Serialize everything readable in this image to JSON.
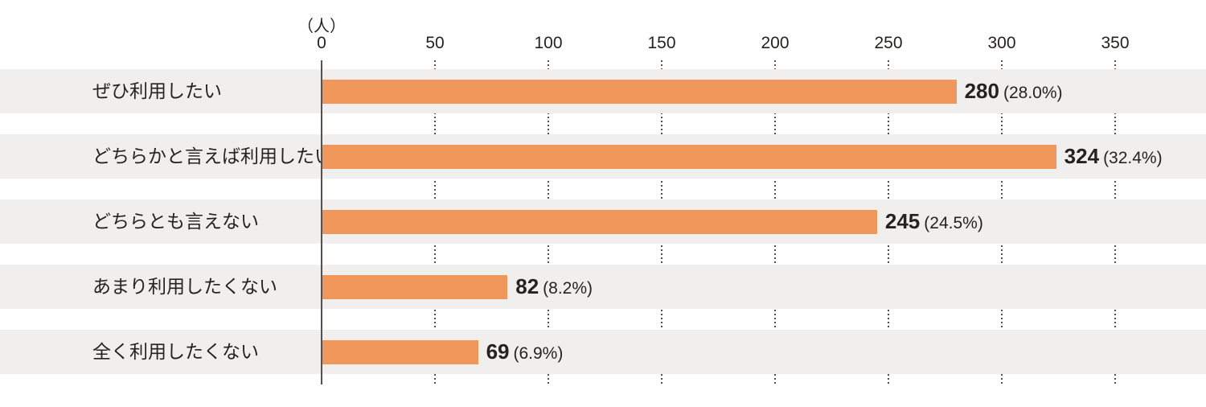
{
  "chart_data": {
    "type": "bar",
    "orientation": "horizontal",
    "title": "",
    "unit_label": "（人）",
    "xlabel": "",
    "ylabel": "",
    "xlim": [
      0,
      390
    ],
    "xticks": [
      0,
      50,
      100,
      150,
      200,
      250,
      300,
      350
    ],
    "grid": "dotted-vertical",
    "legend": "none",
    "categories": [
      "ぜひ利用したい",
      "どちらかと言えば利用したい",
      "どちらとも言えない",
      "あまり利用したくない",
      "全く利用したくない"
    ],
    "values": [
      280,
      324,
      245,
      82,
      69
    ],
    "percent_labels": [
      "(28.0%)",
      "(32.4%)",
      "(24.5%)",
      "(8.2%)",
      "(6.9%)"
    ],
    "colors": {
      "bar": "#F0985C",
      "row_band": "#F0EFED",
      "axis_line": "#55504B",
      "gridline": "#55504B",
      "text": "#262220"
    }
  }
}
